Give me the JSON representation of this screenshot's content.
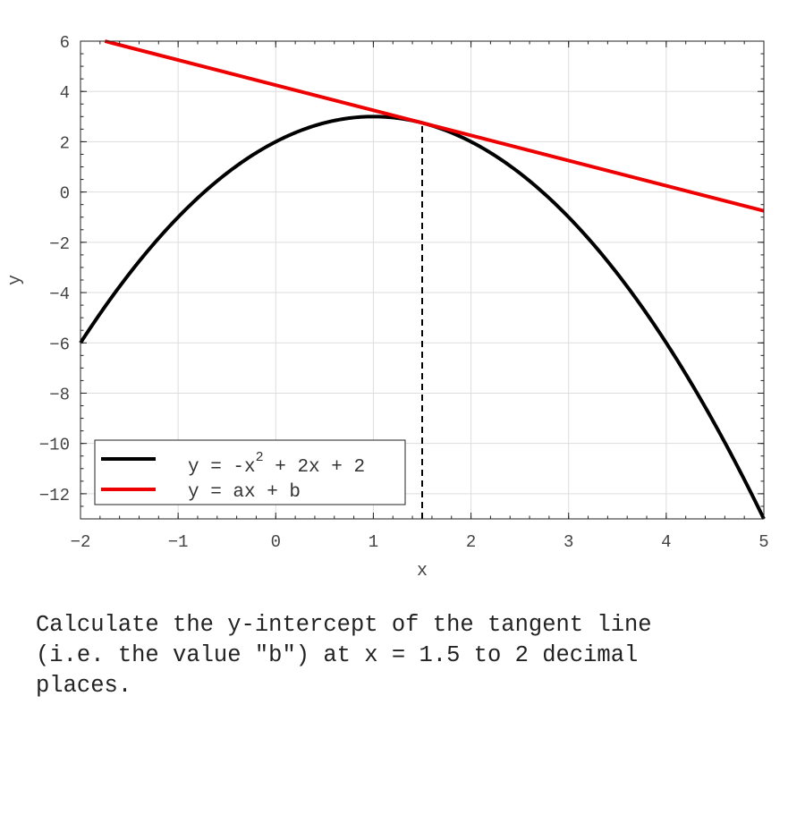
{
  "chart_data": {
    "type": "line",
    "title": "",
    "xlabel": "x",
    "ylabel": "y",
    "xlim": [
      -2,
      5
    ],
    "ylim": [
      -13,
      6
    ],
    "xticks": [
      -2,
      -1,
      0,
      1,
      2,
      3,
      4,
      5
    ],
    "yticks": [
      6,
      4,
      2,
      0,
      -2,
      -4,
      -6,
      -8,
      -10,
      -12
    ],
    "grid": true,
    "legend_placement": "lower-left",
    "series": [
      {
        "name": "y = -x^2 + 2x + 2",
        "name_base": "y = -x",
        "name_sup": "2",
        "name_rest": " + 2x + 2",
        "color": "#000000",
        "function": "-x^2 + 2x + 2",
        "x_range": [
          -2,
          5
        ]
      },
      {
        "name": "y = ax + b",
        "color": "#ee0000",
        "function": "tangent at x = 1.5",
        "x_range": [
          -1.75,
          5
        ],
        "endpoints": [
          [
            -1.75,
            6
          ],
          [
            5,
            -0.75
          ]
        ]
      }
    ],
    "annotations": [
      {
        "type": "vertical-dashed-line",
        "x": 1.5,
        "y_range": [
          -13,
          2.75
        ],
        "color": "#000000"
      }
    ]
  },
  "question": "Calculate the y-intercept of the tangent line\n(i.e. the value \"b\") at x = 1.5 to 2 decimal\nplaces."
}
